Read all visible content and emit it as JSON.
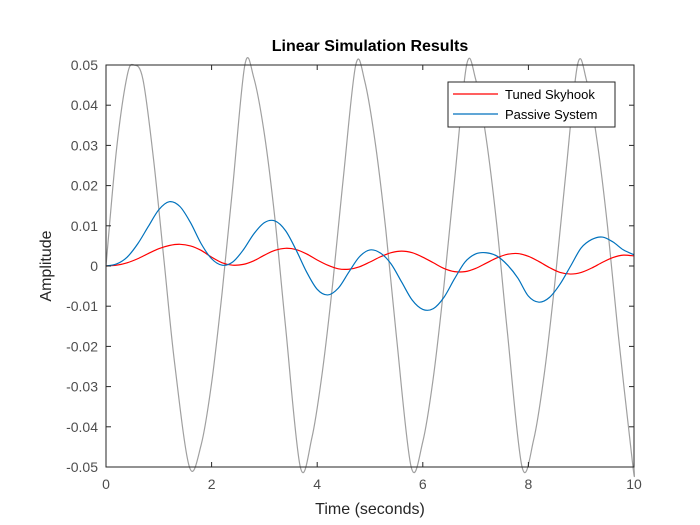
{
  "chart_data": {
    "type": "line",
    "title": "Linear Simulation Results",
    "xlabel": "Time (seconds)",
    "ylabel": "Amplitude",
    "xlim": [
      0,
      10
    ],
    "ylim": [
      -0.05,
      0.05
    ],
    "xticks": [
      0,
      2,
      4,
      6,
      8,
      10
    ],
    "xtick_labels": [
      "0",
      "2",
      "4",
      "6",
      "8",
      "10"
    ],
    "yticks": [
      -0.05,
      -0.04,
      -0.03,
      -0.02,
      -0.01,
      0,
      0.01,
      0.02,
      0.03,
      0.04,
      0.05
    ],
    "ytick_labels": [
      "-0.05",
      "-0.04",
      "-0.03",
      "-0.02",
      "-0.01",
      "0",
      "0.01",
      "0.02",
      "0.03",
      "0.04",
      "0.05"
    ],
    "grid": false,
    "legend_position": "top-right",
    "series": [
      {
        "name": "",
        "color": "#a0a0a0",
        "x": [
          0,
          0.2,
          0.4,
          0.53,
          0.7,
          0.9,
          1.1,
          1.3,
          1.58,
          1.8,
          2.0,
          2.2,
          2.4,
          2.63,
          2.8,
          3.0,
          3.2,
          3.4,
          3.68,
          3.9,
          4.1,
          4.3,
          4.5,
          4.73,
          4.9,
          5.1,
          5.3,
          5.5,
          5.78,
          6.0,
          6.2,
          6.4,
          6.6,
          6.83,
          7.0,
          7.2,
          7.4,
          7.6,
          7.88,
          8.1,
          8.3,
          8.5,
          8.7,
          8.93,
          9.1,
          9.3,
          9.5,
          9.7,
          9.98,
          10.0
        ],
        "y": [
          0,
          0.0291,
          0.0473,
          0.05,
          0.0464,
          0.0266,
          0.0012,
          -0.0242,
          -0.05,
          -0.0446,
          -0.0291,
          -0.0065,
          0.0197,
          0.05,
          0.0468,
          0.0328,
          0.0117,
          -0.015,
          -0.05,
          -0.0427,
          -0.0261,
          -0.0036,
          0.0226,
          0.05,
          0.046,
          0.0306,
          0.0089,
          -0.0175,
          -0.05,
          -0.0437,
          -0.0277,
          -0.005,
          0.0212,
          0.05,
          0.0465,
          0.0318,
          0.0104,
          -0.0162,
          -0.05,
          -0.0432,
          -0.0269,
          -0.0043,
          0.0219,
          0.05,
          0.0462,
          0.0312,
          0.0097,
          -0.0168,
          -0.0499,
          -0.05
        ]
      },
      {
        "name": "Tuned Skyhook",
        "color": "#ff0000",
        "x": [
          0,
          0.2,
          0.4,
          0.6,
          0.8,
          1.0,
          1.2,
          1.4,
          1.6,
          1.8,
          2.0,
          2.2,
          2.4,
          2.6,
          2.8,
          3.0,
          3.2,
          3.4,
          3.6,
          3.8,
          4.0,
          4.2,
          4.4,
          4.6,
          4.8,
          5.0,
          5.2,
          5.4,
          5.6,
          5.8,
          6.0,
          6.2,
          6.4,
          6.6,
          6.8,
          7.0,
          7.2,
          7.4,
          7.6,
          7.8,
          8.0,
          8.2,
          8.4,
          8.6,
          8.8,
          9.0,
          9.2,
          9.4,
          9.6,
          9.8,
          10.0
        ],
        "y": [
          0,
          0.0002,
          0.0008,
          0.0018,
          0.0031,
          0.0043,
          0.0051,
          0.0054,
          0.005,
          0.0039,
          0.0022,
          0.0008,
          0.0002,
          0.0004,
          0.0013,
          0.0027,
          0.0039,
          0.0044,
          0.0041,
          0.003,
          0.0015,
          0.0002,
          -0.0007,
          -0.0008,
          -0.0002,
          0.001,
          0.0023,
          0.0033,
          0.0037,
          0.0033,
          0.0022,
          0.0008,
          -0.0006,
          -0.0014,
          -0.0014,
          -0.0006,
          0.0007,
          0.002,
          0.0029,
          0.0031,
          0.0024,
          0.0011,
          -0.0004,
          -0.0016,
          -0.002,
          -0.0016,
          -0.0005,
          0.0009,
          0.0021,
          0.0027,
          0.0025
        ]
      },
      {
        "name": "Passive System",
        "color": "#0072bd",
        "x": [
          0,
          0.2,
          0.4,
          0.6,
          0.8,
          1.0,
          1.2,
          1.4,
          1.6,
          1.8,
          2.0,
          2.2,
          2.4,
          2.6,
          2.8,
          3.0,
          3.2,
          3.4,
          3.6,
          3.8,
          4.0,
          4.2,
          4.4,
          4.6,
          4.8,
          5.0,
          5.2,
          5.4,
          5.6,
          5.8,
          6.0,
          6.2,
          6.4,
          6.6,
          6.8,
          7.0,
          7.2,
          7.4,
          7.6,
          7.8,
          8.0,
          8.2,
          8.4,
          8.6,
          8.8,
          9.0,
          9.2,
          9.4,
          9.6,
          9.8,
          10.0
        ],
        "y": [
          0,
          0.0005,
          0.0022,
          0.0055,
          0.0098,
          0.014,
          0.016,
          0.0148,
          0.0108,
          0.0056,
          0.0018,
          0.0002,
          0.001,
          0.004,
          0.008,
          0.0108,
          0.0112,
          0.0088,
          0.004,
          -0.0015,
          -0.0058,
          -0.0072,
          -0.0055,
          -0.0015,
          0.0023,
          0.004,
          0.0032,
          0.0005,
          -0.004,
          -0.0085,
          -0.0108,
          -0.0106,
          -0.0078,
          -0.0032,
          0.001,
          0.003,
          0.0033,
          0.0025,
          0.0003,
          -0.003,
          -0.0075,
          -0.009,
          -0.0078,
          -0.0045,
          0.0,
          0.0045,
          0.0066,
          0.0072,
          0.006,
          0.004,
          0.0028
        ]
      }
    ]
  }
}
